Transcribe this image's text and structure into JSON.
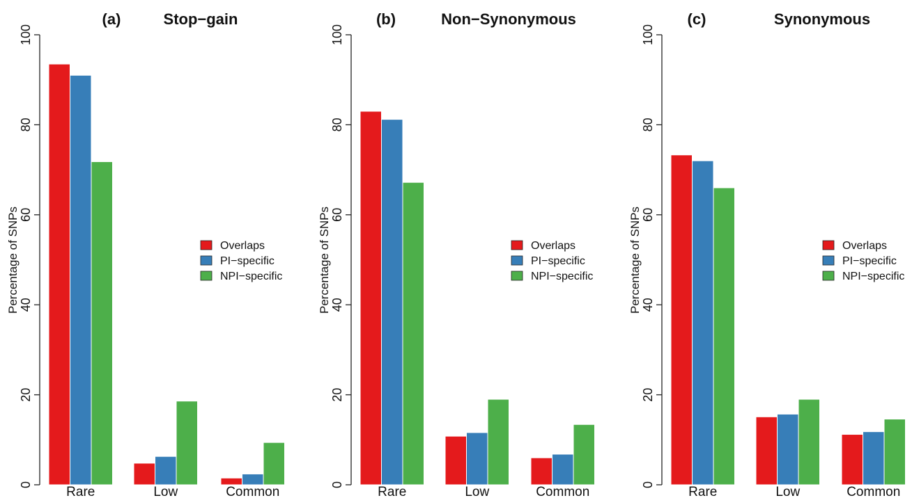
{
  "chart_data": [
    {
      "type": "bar",
      "panel_label": "(a)",
      "title": "Stop−gain",
      "ylabel": "Percentage of SNPs",
      "xlabel": "",
      "ylim": [
        0,
        100
      ],
      "yticks": [
        0,
        20,
        40,
        60,
        80,
        100
      ],
      "categories": [
        "Rare",
        "Low",
        "Common"
      ],
      "legend_position": "right",
      "series": [
        {
          "name": "Overlaps",
          "color": "#e41a1c",
          "values": [
            93.5,
            4.8,
            1.5
          ]
        },
        {
          "name": "PI−specific",
          "color": "#377eb8",
          "values": [
            91.0,
            6.3,
            2.4
          ]
        },
        {
          "name": "NPI−specific",
          "color": "#4daf4a",
          "values": [
            71.8,
            18.6,
            9.4
          ]
        }
      ]
    },
    {
      "type": "bar",
      "panel_label": "(b)",
      "title": "Non−Synonymous",
      "ylabel": "Percentage of SNPs",
      "xlabel": "",
      "ylim": [
        0,
        100
      ],
      "yticks": [
        0,
        20,
        40,
        60,
        80,
        100
      ],
      "categories": [
        "Rare",
        "Low",
        "Common"
      ],
      "legend_position": "right",
      "series": [
        {
          "name": "Overlaps",
          "color": "#e41a1c",
          "values": [
            83.0,
            10.8,
            6.0
          ]
        },
        {
          "name": "PI−specific",
          "color": "#377eb8",
          "values": [
            81.2,
            11.6,
            6.8
          ]
        },
        {
          "name": "NPI−specific",
          "color": "#4daf4a",
          "values": [
            67.2,
            19.0,
            13.4
          ]
        }
      ]
    },
    {
      "type": "bar",
      "panel_label": "(c)",
      "title": "Synonymous",
      "ylabel": "Percentage of SNPs",
      "xlabel": "",
      "ylim": [
        0,
        100
      ],
      "yticks": [
        0,
        20,
        40,
        60,
        80,
        100
      ],
      "categories": [
        "Rare",
        "Low",
        "Common"
      ],
      "legend_position": "right",
      "series": [
        {
          "name": "Overlaps",
          "color": "#e41a1c",
          "values": [
            73.3,
            15.1,
            11.2
          ]
        },
        {
          "name": "PI−specific",
          "color": "#377eb8",
          "values": [
            72.0,
            15.7,
            11.8
          ]
        },
        {
          "name": "NPI−specific",
          "color": "#4daf4a",
          "values": [
            66.0,
            19.0,
            14.6
          ]
        }
      ]
    }
  ]
}
